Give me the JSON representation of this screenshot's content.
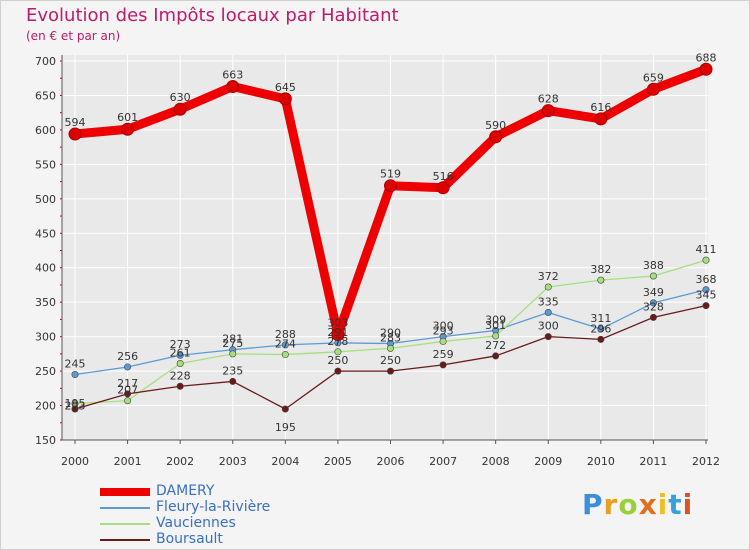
{
  "header": {
    "title": "Evolution des Impôts locaux par Habitant",
    "subtitle": "(en € et par an)"
  },
  "logo": {
    "letters": [
      "P",
      "r",
      "o",
      "x",
      "i",
      "t",
      "i"
    ]
  },
  "colors": {
    "title": "#c01a6b",
    "grid": "#ffffff",
    "tick_red": "#cc0000",
    "DAMERY": "#ee0000",
    "Fleury-la-Rivière": "#5b9bd5",
    "Vauciennes": "#a6e07c",
    "Boursault": "#6b1a1a"
  },
  "chart_data": {
    "type": "line",
    "title": "Evolution des Impôts locaux par Habitant",
    "subtitle": "(en € et par an)",
    "xlabel": "",
    "ylabel": "",
    "ylim": [
      150,
      700
    ],
    "yticks": [
      150,
      200,
      250,
      300,
      350,
      400,
      450,
      500,
      550,
      600,
      650,
      700
    ],
    "grid": true,
    "legend_position": "bottom-left",
    "x": [
      "2000",
      "2001",
      "2002",
      "2003",
      "2004",
      "2005",
      "2006",
      "2007",
      "2008",
      "2009",
      "2010",
      "2011",
      "2012"
    ],
    "series": [
      {
        "name": "DAMERY",
        "color": "#ee0000",
        "values": [
          594,
          601,
          630,
          663,
          645,
          303,
          519,
          516,
          590,
          628,
          616,
          659,
          688
        ],
        "labels": [
          "594",
          "601",
          "630",
          "663",
          "645",
          "303",
          "519",
          "516",
          "590",
          "628",
          "616",
          "659",
          "688"
        ]
      },
      {
        "name": "Fleury-la-Rivière",
        "color": "#5b9bd5",
        "values": [
          245,
          256,
          273,
          281,
          288,
          291,
          290,
          300,
          309,
          335,
          311,
          349,
          368
        ],
        "labels": [
          "245",
          "256",
          "273",
          "281",
          "288",
          "291",
          "290",
          "300",
          "309",
          "335",
          "311",
          "349",
          "368"
        ]
      },
      {
        "name": "Vauciennes",
        "color": "#a6e07c",
        "values": [
          203,
          207,
          261,
          275,
          274,
          278,
          283,
          293,
          301,
          372,
          382,
          388,
          411
        ],
        "labels": [
          "203",
          "207",
          "261",
          "275",
          "274",
          "278",
          "283",
          "293",
          "301",
          "372",
          "382",
          "388",
          "411"
        ]
      },
      {
        "name": "Boursault",
        "color": "#6b1a1a",
        "values": [
          195,
          217,
          228,
          235,
          195,
          250,
          250,
          259,
          272,
          300,
          296,
          328,
          345
        ],
        "labels": [
          "195",
          "217",
          "228",
          "235",
          "195",
          "250",
          "250",
          "259",
          "272",
          "300",
          "296",
          "328",
          "345"
        ]
      }
    ]
  }
}
